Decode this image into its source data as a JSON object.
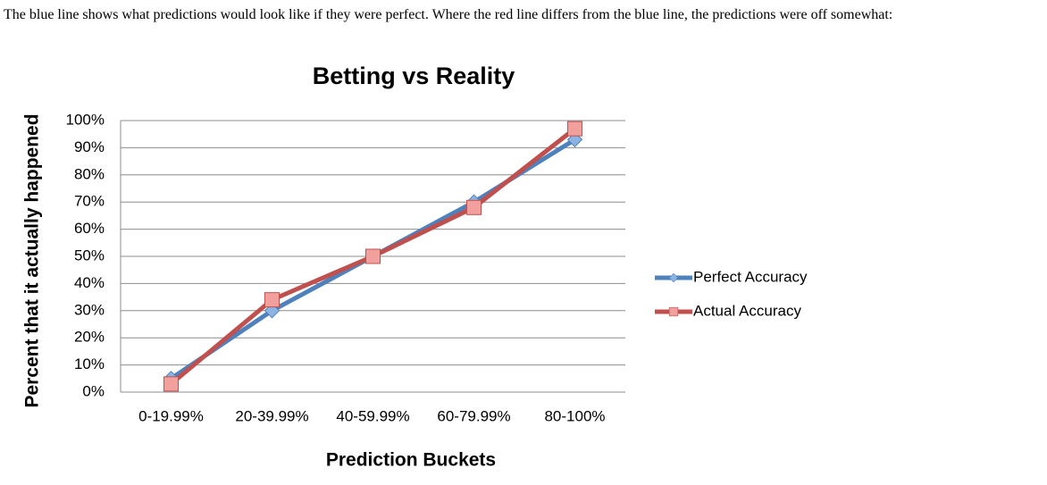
{
  "intro": "The blue line shows what predictions would look like if they were perfect. Where the red line differs from the blue line, the predictions were off somewhat:",
  "chart_data": {
    "type": "line",
    "title": "Betting vs Reality",
    "x_label": "Prediction Buckets",
    "y_label": "Percent that it actually happened",
    "categories": [
      "0-19.99%",
      "20-39.99%",
      "40-59.99%",
      "60-79.99%",
      "80-100%"
    ],
    "series": [
      {
        "name": "Perfect Accuracy",
        "color": "#4f81bd",
        "marker": "diamond",
        "values": [
          5,
          30,
          50,
          70,
          93
        ]
      },
      {
        "name": "Actual Accuracy",
        "color": "#c0504d",
        "marker": "square",
        "values": [
          3,
          34,
          50,
          68,
          97
        ]
      }
    ],
    "ylim": [
      0,
      100
    ],
    "yticks": [
      {
        "value": 0,
        "label": "0%"
      },
      {
        "value": 10,
        "label": "10%"
      },
      {
        "value": 20,
        "label": "20%"
      },
      {
        "value": 30,
        "label": "30%"
      },
      {
        "value": 40,
        "label": "40%"
      },
      {
        "value": 50,
        "label": "50%"
      },
      {
        "value": 60,
        "label": "60%"
      },
      {
        "value": 70,
        "label": "70%"
      },
      {
        "value": 80,
        "label": "80%"
      },
      {
        "value": 90,
        "label": "90%"
      },
      {
        "value": 100,
        "label": "100%"
      }
    ],
    "grid": true,
    "legend": "right"
  }
}
